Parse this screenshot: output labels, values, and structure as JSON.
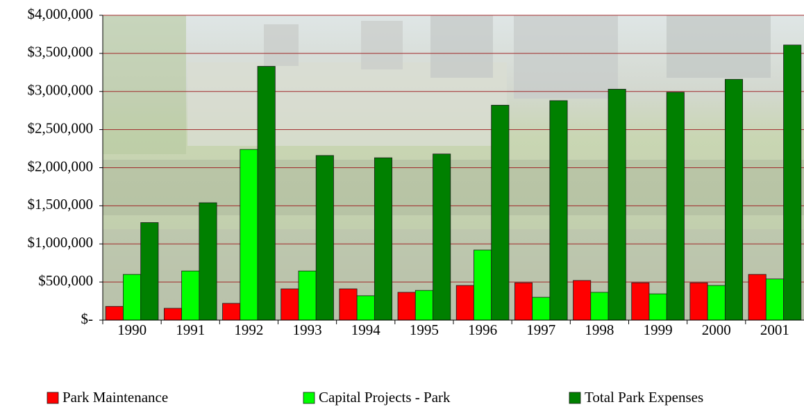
{
  "chart_data": {
    "type": "bar",
    "categories": [
      "1990",
      "1991",
      "1992",
      "1993",
      "1994",
      "1995",
      "1996",
      "1997",
      "1998",
      "1999",
      "2000",
      "2001"
    ],
    "series": [
      {
        "name": "Park Maintenance",
        "color": "#ff0000",
        "values": [
          180000,
          155000,
          220000,
          410000,
          410000,
          365000,
          455000,
          490000,
          520000,
          490000,
          490000,
          600000
        ]
      },
      {
        "name": "Capital Projects - Park",
        "color": "#00ff00",
        "values": [
          600000,
          645000,
          2240000,
          645000,
          320000,
          390000,
          920000,
          300000,
          365000,
          345000,
          455000,
          540000
        ]
      },
      {
        "name": "Total Park Expenses",
        "color": "#008000",
        "values": [
          1280000,
          1540000,
          3330000,
          2160000,
          2130000,
          2180000,
          2820000,
          2880000,
          3030000,
          2990000,
          3160000,
          3610000
        ]
      }
    ],
    "ylim": [
      0,
      4000000
    ],
    "yticks": [
      {
        "value": 0,
        "label": "$-"
      },
      {
        "value": 500000,
        "label": "$500,000"
      },
      {
        "value": 1000000,
        "label": "$1,000,000"
      },
      {
        "value": 1500000,
        "label": "$1,500,000"
      },
      {
        "value": 2000000,
        "label": "$2,000,000"
      },
      {
        "value": 2500000,
        "label": "$2,500,000"
      },
      {
        "value": 3000000,
        "label": "$3,000,000"
      },
      {
        "value": 3500000,
        "label": "$3,500,000"
      },
      {
        "value": 4000000,
        "label": "$4,000,000"
      }
    ],
    "grid": true,
    "legend": "bottom"
  }
}
